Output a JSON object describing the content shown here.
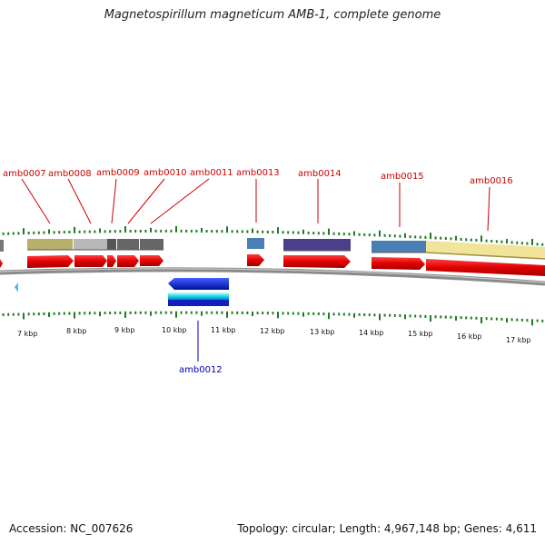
{
  "title": "Magnetospirillum magneticum AMB-1, complete genome",
  "footer": {
    "accession": "Accession: NC_007626",
    "summary": "Topology: circular; Length: 4,967,148 bp; Genes: 4,611"
  },
  "colors": {
    "gene_arrow": "#e30000",
    "gene_label_forward": "#cc0000",
    "gene_label_reverse": "#0000bb",
    "tick": "#1e7a1e",
    "backbone": "#888888"
  },
  "ruler": {
    "unit": "kbp",
    "labels": [
      "7 kbp",
      "8 kbp",
      "9 kbp",
      "10 kbp",
      "11 kbp",
      "12 kbp",
      "13 kbp",
      "14 kbp",
      "15 kbp",
      "16 kbp",
      "17 kbp"
    ]
  },
  "genes_forward": [
    {
      "name": "amb0007",
      "color": "#b8b068"
    },
    {
      "name": "amb0008",
      "color": "#b8b8b8"
    },
    {
      "name": "amb0009",
      "color": "#555555"
    },
    {
      "name": "amb0010",
      "color": "#666666"
    },
    {
      "name": "amb0011",
      "color": "#666666"
    },
    {
      "name": "amb0013",
      "color": "#4a7fb5"
    },
    {
      "name": "amb0014",
      "color": "#4a3f8a"
    },
    {
      "name": "amb0015",
      "color": "#4a7fb5"
    },
    {
      "name": "amb0016",
      "color": "#f0e49a"
    }
  ],
  "genes_reverse": [
    {
      "name": "amb0012",
      "color": "#1010d0"
    }
  ]
}
